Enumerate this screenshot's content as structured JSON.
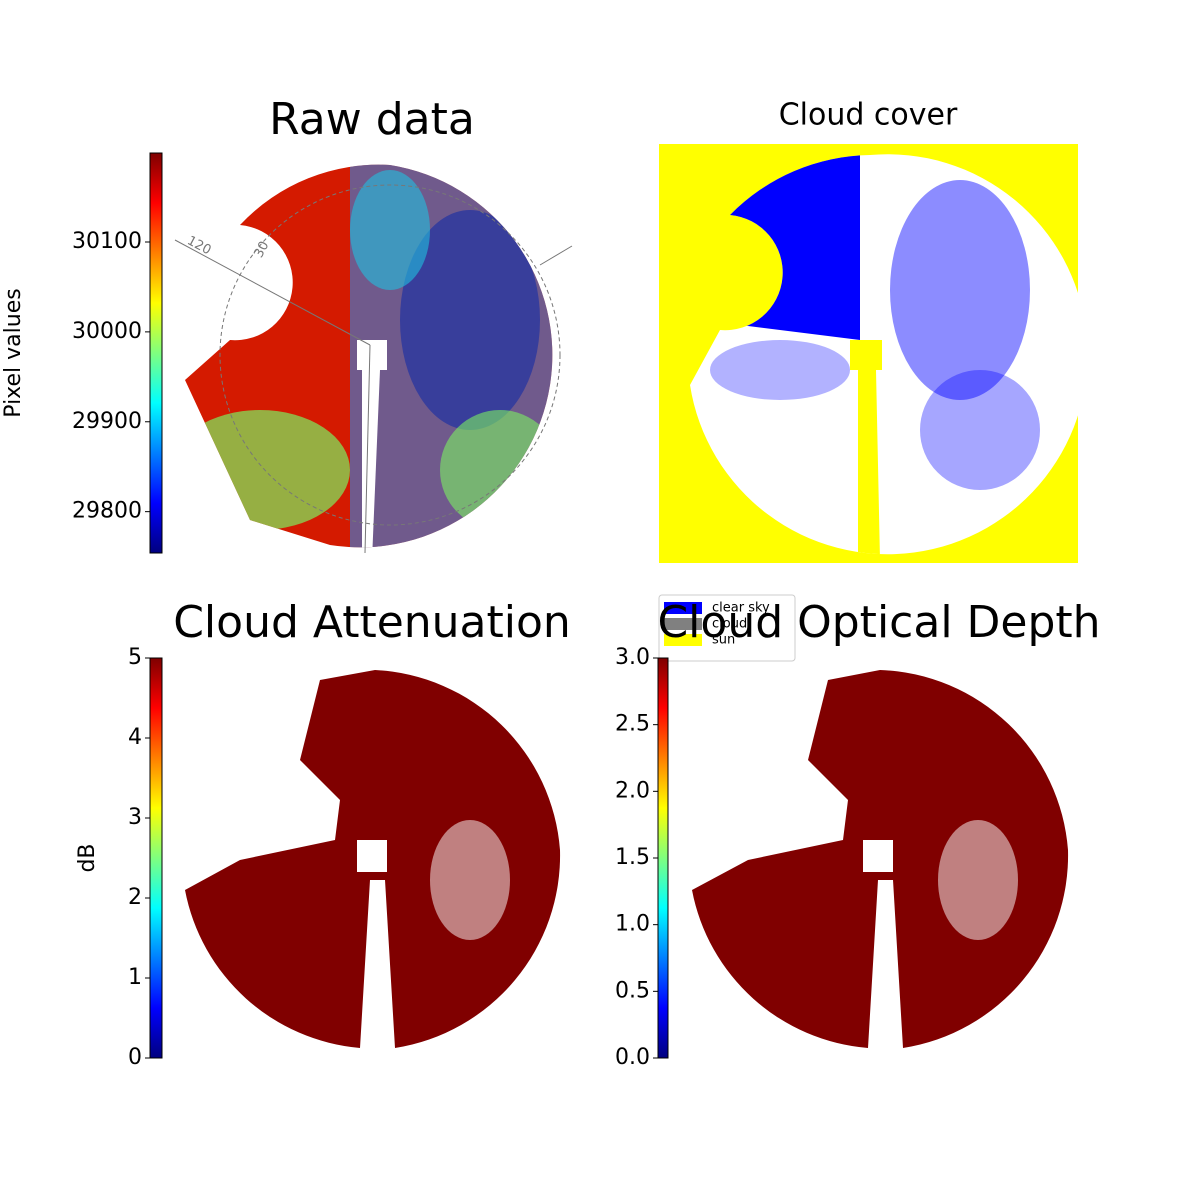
{
  "chart_data": [
    {
      "type": "image",
      "title": "Raw data",
      "colormap": "jet",
      "colorbar": {
        "label": "Pixel values",
        "lim": [
          29754,
          30199
        ],
        "ticks": [
          29800,
          29900,
          30000,
          30100
        ]
      },
      "annotations": [
        "120",
        "30"
      ]
    },
    {
      "type": "image",
      "title": "Cloud cover",
      "legend": {
        "position": "lower left",
        "series": [
          {
            "name": "clear sky",
            "color": "#0000ff"
          },
          {
            "name": "cloud",
            "color": "#808080"
          },
          {
            "name": "sun",
            "color": "#ffff00"
          }
        ]
      }
    },
    {
      "type": "image",
      "title": "Cloud Attenuation",
      "colormap": "jet",
      "colorbar": {
        "label": "dB",
        "lim": [
          0,
          5
        ],
        "ticks": [
          0,
          1,
          2,
          3,
          4,
          5
        ]
      }
    },
    {
      "type": "image",
      "title": "Cloud Optical Depth",
      "colormap": "jet",
      "colorbar": {
        "lim": [
          0,
          3
        ],
        "ticks": [
          {
            "value": 0,
            "label": "0.0"
          },
          0.5,
          {
            "value": 1,
            "label": "1.0"
          },
          1.5,
          {
            "value": 2,
            "label": "2.0"
          },
          2.5,
          {
            "value": 3,
            "label": "3.0"
          }
        ]
      }
    }
  ]
}
